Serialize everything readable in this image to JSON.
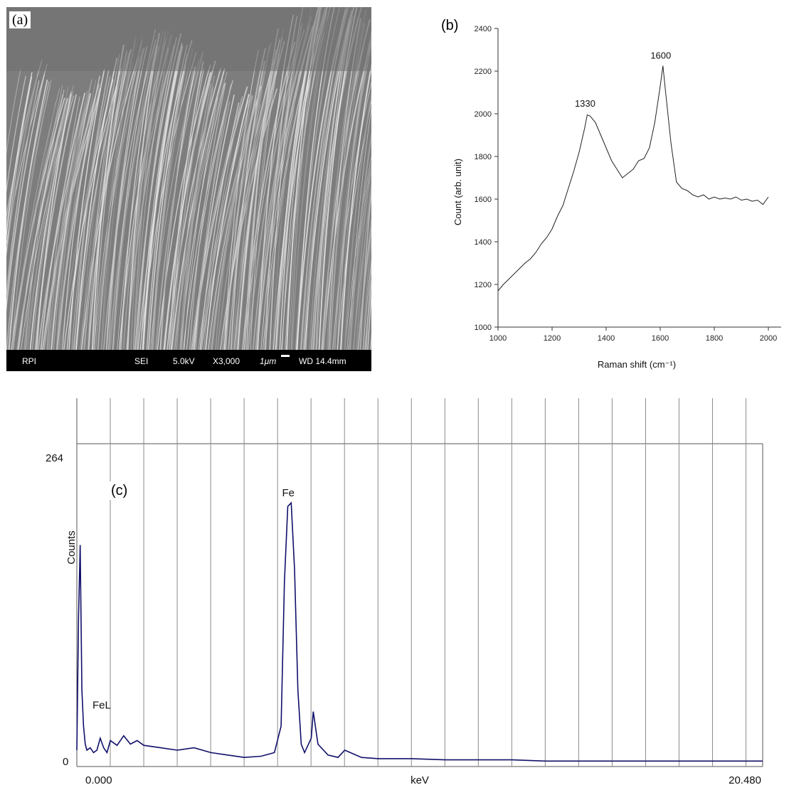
{
  "panel_a": {
    "label": "(a)",
    "info_bar": {
      "lab": "RPI",
      "mode": "SEI",
      "voltage": "5.0kV",
      "magnification": "X3,000",
      "scale": "1μm",
      "working_distance": "WD 14.4mm"
    }
  },
  "chart_data": [
    {
      "type": "line",
      "label": "(b)",
      "xlabel": "Raman shift (cm⁻¹)",
      "ylabel": "Count (arb. unit)",
      "xlim": [
        1000,
        2000
      ],
      "ylim": [
        1000,
        2400
      ],
      "xticks": [
        1000,
        1200,
        1400,
        1600,
        1800,
        2000
      ],
      "yticks": [
        1000,
        1200,
        1400,
        1600,
        1800,
        2000,
        2200,
        2400
      ],
      "annotations": [
        {
          "text": "1330",
          "x": 1330,
          "y": 2000
        },
        {
          "text": "1600",
          "x": 1610,
          "y": 2225
        }
      ],
      "series": [
        {
          "x": [
            1000,
            1020,
            1040,
            1060,
            1080,
            1100,
            1120,
            1140,
            1160,
            1180,
            1200,
            1220,
            1240,
            1260,
            1280,
            1300,
            1320,
            1330,
            1340,
            1360,
            1380,
            1400,
            1420,
            1440,
            1460,
            1480,
            1500,
            1520,
            1540,
            1560,
            1580,
            1600,
            1610,
            1620,
            1640,
            1660,
            1680,
            1700,
            1720,
            1740,
            1760,
            1780,
            1800,
            1820,
            1840,
            1860,
            1880,
            1900,
            1920,
            1940,
            1960,
            1980,
            2000
          ],
          "y": [
            1170,
            1200,
            1225,
            1250,
            1275,
            1300,
            1320,
            1350,
            1390,
            1420,
            1460,
            1520,
            1570,
            1650,
            1730,
            1820,
            1930,
            1995,
            1990,
            1960,
            1900,
            1840,
            1780,
            1740,
            1700,
            1720,
            1740,
            1780,
            1790,
            1840,
            1960,
            2130,
            2225,
            2100,
            1860,
            1680,
            1650,
            1640,
            1620,
            1610,
            1620,
            1600,
            1610,
            1600,
            1605,
            1600,
            1610,
            1595,
            1600,
            1590,
            1595,
            1575,
            1610
          ]
        }
      ]
    },
    {
      "type": "line",
      "label": "(c)",
      "xlabel": "keV",
      "ylabel": "Counts",
      "xlim": [
        0,
        20.48
      ],
      "ylim": [
        0,
        264
      ],
      "x_tick_labels": [
        "0.000",
        "20.480"
      ],
      "y_tick_labels": [
        "264",
        "0"
      ],
      "annotations": [
        {
          "text": "Fe",
          "x": 6.4,
          "y": 218
        },
        {
          "text": "FeL",
          "x": 0.7,
          "y": 42
        }
      ],
      "series": [
        {
          "x": [
            0.0,
            0.05,
            0.1,
            0.15,
            0.2,
            0.25,
            0.3,
            0.4,
            0.5,
            0.6,
            0.7,
            0.8,
            0.9,
            1.0,
            1.2,
            1.4,
            1.6,
            1.8,
            2.0,
            2.5,
            3.0,
            3.5,
            4.0,
            4.5,
            5.0,
            5.5,
            5.9,
            6.1,
            6.2,
            6.3,
            6.4,
            6.5,
            6.6,
            6.7,
            6.8,
            7.0,
            7.06,
            7.2,
            7.5,
            7.8,
            8.0,
            8.5,
            9.0,
            10.0,
            11.0,
            12.0,
            13.0,
            14.0,
            15.0,
            16.0,
            17.0,
            18.0,
            19.0,
            20.0,
            20.48
          ],
          "y": [
            10,
            120,
            180,
            60,
            30,
            15,
            10,
            12,
            8,
            10,
            20,
            12,
            8,
            18,
            14,
            22,
            15,
            18,
            14,
            12,
            10,
            12,
            8,
            6,
            4,
            5,
            8,
            30,
            150,
            212,
            215,
            160,
            60,
            15,
            8,
            20,
            42,
            15,
            6,
            4,
            10,
            4,
            3,
            3,
            2,
            2,
            2,
            1,
            1,
            1,
            1,
            1,
            1,
            1,
            1
          ]
        }
      ]
    }
  ]
}
